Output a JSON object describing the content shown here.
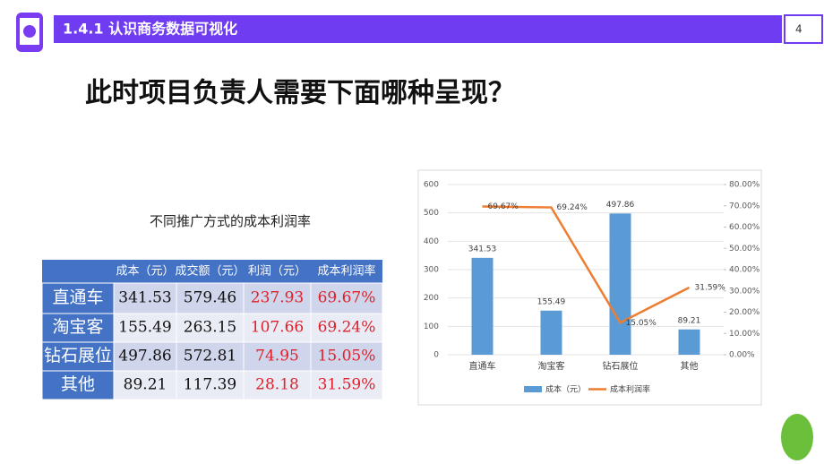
{
  "header": {
    "section": "1.4.1 认识商务数据可视化",
    "page": "4"
  },
  "title": "此时项目负责人需要下面哪种呈现？",
  "table": {
    "title": "不同推广方式的成本利润率",
    "columns": [
      "成本（元）",
      "成交额（元）",
      "利润（元）",
      "成本利润率"
    ],
    "rows": [
      [
        "直通车",
        "341.53",
        "579.46",
        "237.93",
        "69.67%"
      ],
      [
        "淘宝客",
        "155.49",
        "263.15",
        "107.66",
        "69.24%"
      ],
      [
        "钻石展位",
        "497.86",
        "572.81",
        "74.95",
        "15.05%"
      ],
      [
        "其他",
        "89.21",
        "117.39",
        "28.18",
        "31.59%"
      ]
    ]
  },
  "chart_data": {
    "type": "bar-line",
    "categories": [
      "直通车",
      "淘宝客",
      "钻石展位",
      "其他"
    ],
    "series": [
      {
        "name": "成本（元）",
        "type": "bar",
        "color": "#5b9bd5",
        "values": [
          341.53,
          155.49,
          497.86,
          89.21
        ]
      },
      {
        "name": "成本利润率",
        "type": "line",
        "axis": "y2",
        "color": "#ed7d31",
        "values": [
          69.67,
          69.24,
          15.05,
          31.59
        ],
        "value_labels": [
          "69.67%",
          "69.24%",
          "15.05%",
          "31.59%"
        ]
      }
    ],
    "ylim": [
      0,
      600
    ],
    "yticks": [
      0,
      100,
      200,
      300,
      400,
      500,
      600
    ],
    "y2lim": [
      0,
      80
    ],
    "y2ticks": [
      {
        "value": 0,
        "label": "0.00%"
      },
      {
        "value": 10,
        "label": "10.00%"
      },
      {
        "value": 20,
        "label": "20.00%"
      },
      {
        "value": 30,
        "label": "30.00%"
      },
      {
        "value": 40,
        "label": "40.00%"
      },
      {
        "value": 50,
        "label": "50.00%"
      },
      {
        "value": 60,
        "label": "60.00%"
      },
      {
        "value": 70,
        "label": "70.00%"
      },
      {
        "value": 80,
        "label": "80.00%"
      }
    ],
    "legend": "bottom"
  }
}
